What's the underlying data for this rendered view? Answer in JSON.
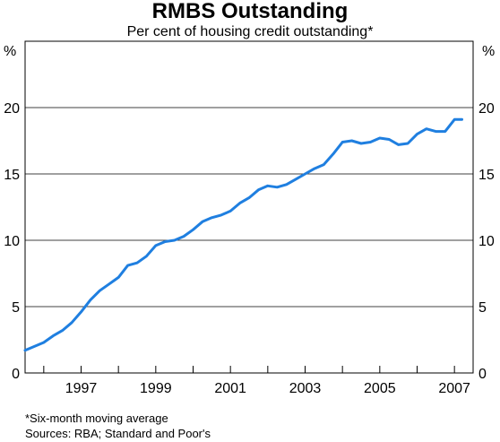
{
  "chart_data": {
    "type": "line",
    "title": "RMBS Outstanding",
    "subtitle": "Per cent of housing credit outstanding*",
    "ylabel_left": "%",
    "ylabel_right": "%",
    "ylim": [
      0,
      25
    ],
    "yticks": [
      0,
      5,
      10,
      15,
      20
    ],
    "xlim": [
      1995.5,
      2007.5
    ],
    "xticks": [
      "1997",
      "1999",
      "2001",
      "2003",
      "2005",
      "2007"
    ],
    "grid": "horizontal",
    "series_color": "#1f7fe0",
    "series": [
      {
        "x": [
          1995.5,
          1995.75,
          1996.0,
          1996.25,
          1996.5,
          1996.75,
          1997.0,
          1997.25,
          1997.5,
          1997.75,
          1998.0,
          1998.25,
          1998.5,
          1998.75,
          1999.0,
          1999.25,
          1999.5,
          1999.75,
          2000.0,
          2000.25,
          2000.5,
          2000.75,
          2001.0,
          2001.25,
          2001.5,
          2001.75,
          2002.0,
          2002.25,
          2002.5,
          2002.75,
          2003.0,
          2003.25,
          2003.5,
          2003.75,
          2004.0,
          2004.25,
          2004.5,
          2004.75,
          2005.0,
          2005.25,
          2005.5,
          2005.75,
          2006.0,
          2006.25,
          2006.5,
          2006.75,
          2007.0,
          2007.2
        ],
        "y": [
          1.7,
          2.0,
          2.3,
          2.8,
          3.2,
          3.8,
          4.6,
          5.5,
          6.2,
          6.7,
          7.2,
          8.1,
          8.3,
          8.8,
          9.6,
          9.9,
          10.0,
          10.3,
          10.8,
          11.4,
          11.7,
          11.9,
          12.2,
          12.8,
          13.2,
          13.8,
          14.1,
          14.0,
          14.2,
          14.6,
          15.0,
          15.4,
          15.7,
          16.5,
          17.4,
          17.5,
          17.3,
          17.4,
          17.7,
          17.6,
          17.2,
          17.3,
          18.0,
          18.4,
          18.2,
          18.2,
          19.1,
          19.1
        ]
      }
    ]
  },
  "notes": {
    "footnote": "*Six-month moving average",
    "sources": "Sources: RBA; Standard and Poor's"
  }
}
